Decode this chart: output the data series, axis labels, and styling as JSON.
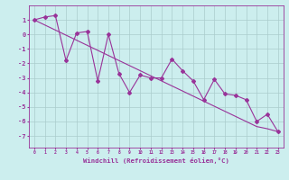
{
  "x_data": [
    0,
    1,
    2,
    3,
    4,
    5,
    6,
    7,
    8,
    9,
    10,
    11,
    12,
    13,
    14,
    15,
    16,
    17,
    18,
    19,
    20,
    21,
    22,
    23
  ],
  "y_zigzag": [
    1.0,
    1.2,
    1.3,
    -1.8,
    0.1,
    0.2,
    -3.2,
    0.0,
    -2.7,
    -4.0,
    -2.8,
    -3.0,
    -3.0,
    -1.7,
    -2.5,
    -3.2,
    -4.5,
    -3.1,
    -4.1,
    -4.2,
    -4.5,
    -6.0,
    -5.5,
    -6.7
  ],
  "y_trend": [
    1.0,
    0.65,
    0.3,
    -0.05,
    -0.4,
    -0.75,
    -1.1,
    -1.45,
    -1.8,
    -2.15,
    -2.5,
    -2.85,
    -3.2,
    -3.55,
    -3.9,
    -4.25,
    -4.6,
    -4.95,
    -5.3,
    -5.65,
    -6.0,
    -6.35,
    -6.5,
    -6.7
  ],
  "line_color": "#993399",
  "bg_color": "#cceeee",
  "grid_color": "#aacccc",
  "xlabel": "Windchill (Refroidissement éolien,°C)",
  "ylim": [
    -7.8,
    2.0
  ],
  "xlim": [
    -0.5,
    23.5
  ],
  "yticks": [
    1,
    0,
    -1,
    -2,
    -3,
    -4,
    -5,
    -6,
    -7
  ],
  "xticks": [
    0,
    1,
    2,
    3,
    4,
    5,
    6,
    7,
    8,
    9,
    10,
    11,
    12,
    13,
    14,
    15,
    16,
    17,
    18,
    19,
    20,
    21,
    22,
    23
  ]
}
